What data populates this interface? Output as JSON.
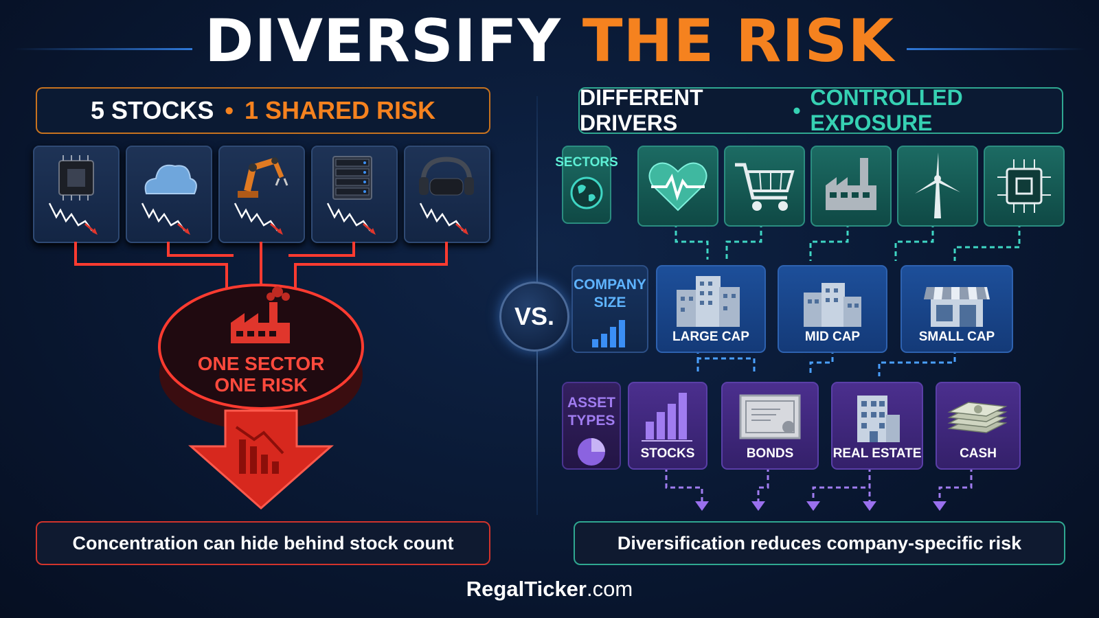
{
  "title": {
    "part1": "DIVERSIFY",
    "part2": "THE RISK"
  },
  "left": {
    "header": {
      "part1": "5 STOCKS",
      "separator": "•",
      "part2": "1 SHARED RISK"
    },
    "stocks": [
      {
        "icon": "microchip-icon"
      },
      {
        "icon": "cloud-icon"
      },
      {
        "icon": "robot-arm-icon"
      },
      {
        "icon": "server-icon"
      },
      {
        "icon": "vr-headset-icon"
      }
    ],
    "risk_line1": "ONE SECTOR",
    "risk_line2": "ONE RISK",
    "footer": "Concentration can hide behind stock count"
  },
  "vs": "VS.",
  "right": {
    "header": {
      "part1": "DIFFERENT DRIVERS",
      "separator": "•",
      "part2": "CONTROLLED EXPOSURE"
    },
    "sectors": {
      "label": "SECTORS",
      "items": [
        {
          "icon": "heart-pulse-icon"
        },
        {
          "icon": "shopping-cart-icon"
        },
        {
          "icon": "factory-icon"
        },
        {
          "icon": "wind-turbine-icon"
        },
        {
          "icon": "circuit-chip-icon"
        }
      ]
    },
    "company_size": {
      "label_line1": "COMPANY",
      "label_line2": "SIZE",
      "items": [
        {
          "label": "LARGE CAP"
        },
        {
          "label": "MID CAP"
        },
        {
          "label": "SMALL CAP"
        }
      ]
    },
    "asset_types": {
      "label_line1": "ASSET",
      "label_line2": "TYPES",
      "items": [
        {
          "label": "STOCKS"
        },
        {
          "label": "BONDS"
        },
        {
          "label": "REAL ESTATE"
        },
        {
          "label": "CASH"
        }
      ]
    },
    "footer": "Diversification reduces company-specific risk"
  },
  "brand": {
    "name": "RegalTicker",
    "domain": ".com"
  },
  "colors": {
    "orange": "#f5821f",
    "teal": "#36d1b3",
    "red": "#e0362c",
    "purple": "#8b63e0",
    "blue": "#2e62b0"
  }
}
